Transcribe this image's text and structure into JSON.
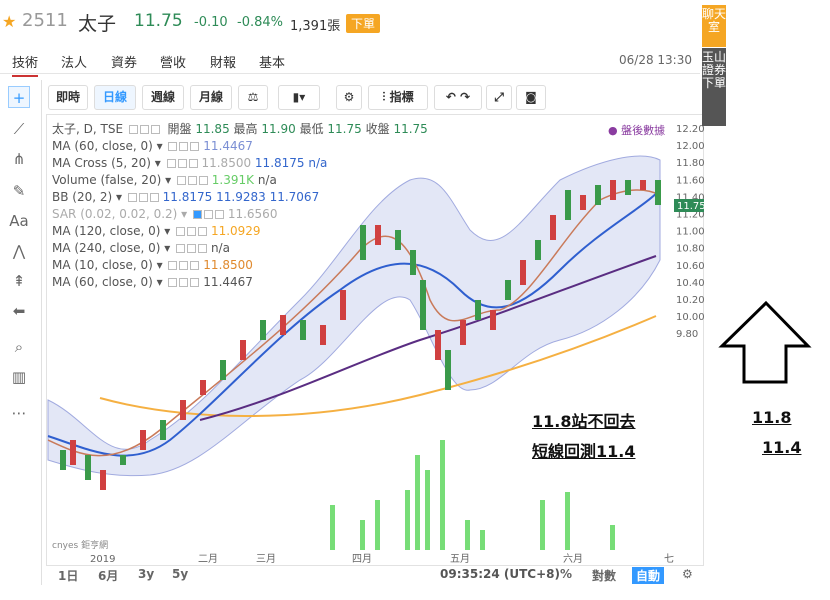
{
  "quote": {
    "code": "2511",
    "name": "太子",
    "price": "11.75",
    "change": "-0.10",
    "change_pct": "-0.84%",
    "volume": "1,391張",
    "order_button": "下單",
    "color_down": "#2e8b57"
  },
  "tabs": [
    "技術",
    "法人",
    "資券",
    "營收",
    "財報",
    "基本"
  ],
  "datetime": "06/28 13:30",
  "toolbar": {
    "intraday": "即時",
    "daily": "日線",
    "weekly": "週線",
    "monthly": "月線",
    "indicators": "指標"
  },
  "legend": {
    "main": "太子, D, TSE",
    "open_label": "開盤",
    "open": "11.85",
    "high_label": "最高",
    "high": "11.90",
    "low_label": "最低",
    "low": "11.75",
    "close_label": "收盤",
    "close": "11.75",
    "after_hours": "● 盤後數據",
    "rows": [
      {
        "name": "MA (60, close, 0)",
        "value": "11.4467",
        "color": "#7b8fd4"
      },
      {
        "name": "MA Cross (5, 20)",
        "value": "11.8500",
        "value2": "11.8175",
        "value3": "n/a",
        "color": "#7b8fd4"
      },
      {
        "name": "Volume (false, 20)",
        "value": "1.391K",
        "value2": "n/a",
        "color": "#6c6"
      },
      {
        "name": "BB (20, 2)",
        "value": "11.8175",
        "value2": "11.9283",
        "value3": "11.7067",
        "color": "#3366cc"
      },
      {
        "name": "SAR (0.02, 0.02, 0.2)",
        "value": "11.6560",
        "color": "#aaa"
      },
      {
        "name": "MA (120, close, 0)",
        "value": "11.0929",
        "color": "#f5a623"
      },
      {
        "name": "MA (240, close, 0)",
        "value": "n/a",
        "color": "#333"
      },
      {
        "name": "MA (10, close, 0)",
        "value": "11.8500",
        "color": "#e08a2e"
      },
      {
        "name": "MA (60, close, 0)",
        "value": "11.4467",
        "color": "#555"
      }
    ]
  },
  "y_axis": [
    "12.20",
    "12.00",
    "11.80",
    "11.60",
    "11.40",
    "11.20",
    "11.00",
    "10.80",
    "10.60",
    "10.40",
    "10.20",
    "10.00",
    "9.80"
  ],
  "last_price_tag": "11.75",
  "x_axis": [
    "2019",
    "二月",
    "三月",
    "四月",
    "五月",
    "六月",
    "七"
  ],
  "bottom": {
    "ranges": [
      "1日",
      "6月",
      "3y",
      "5y"
    ],
    "time": "09:35:24 (UTC+8)",
    "pct": "%",
    "log": "對數",
    "auto": "自動"
  },
  "side_tabs": {
    "chat": "聊天室",
    "broker": "玉山證券下單"
  },
  "annotations": {
    "line1": "11.8站不回去",
    "line2": "短線回測11.4",
    "right1": "11.8",
    "right2": "11.4"
  },
  "logo_text": "cnyes 鉅亨網"
}
